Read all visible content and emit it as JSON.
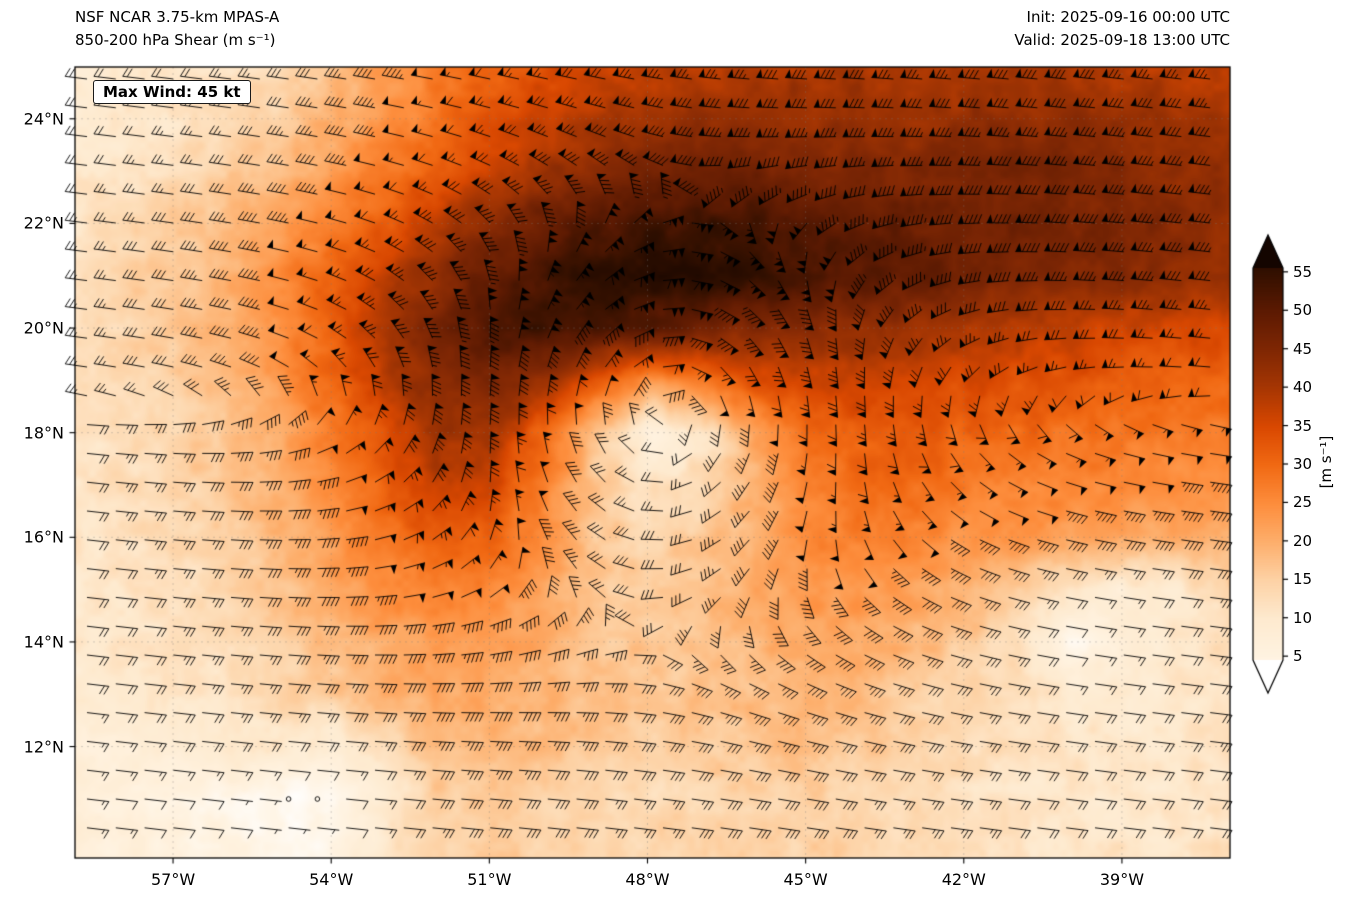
{
  "header": {
    "model_line": "NSF NCAR 3.75-km MPAS-A",
    "field_line": "850-200 hPa Shear (m s⁻¹)",
    "init_line": "Init: 2025-09-16 00:00 UTC",
    "valid_line": "Valid: 2025-09-18 13:00 UTC"
  },
  "annotation": {
    "max_wind_label": "Max Wind: 45 kt"
  },
  "chart_data": {
    "type": "heatmap",
    "title": "850-200 hPa Shear (m s⁻¹)",
    "units": "m s⁻¹",
    "lon_range": [
      -58.86,
      -36.95
    ],
    "lat_range": [
      9.87,
      24.99
    ],
    "x_ticks": [
      {
        "lon": -57,
        "label": "57°W"
      },
      {
        "lon": -54,
        "label": "54°W"
      },
      {
        "lon": -51,
        "label": "51°W"
      },
      {
        "lon": -48,
        "label": "48°W"
      },
      {
        "lon": -45,
        "label": "45°W"
      },
      {
        "lon": -42,
        "label": "42°W"
      },
      {
        "lon": -39,
        "label": "39°W"
      }
    ],
    "y_ticks": [
      {
        "lat": 12,
        "label": "12°N"
      },
      {
        "lat": 14,
        "label": "14°N"
      },
      {
        "lat": 16,
        "label": "16°N"
      },
      {
        "lat": 18,
        "label": "18°N"
      },
      {
        "lat": 20,
        "label": "20°N"
      },
      {
        "lat": 22,
        "label": "22°N"
      },
      {
        "lat": 24,
        "label": "24°N"
      }
    ],
    "colorbar": {
      "label": "[m s⁻¹]",
      "ticks": [
        5,
        10,
        15,
        20,
        25,
        30,
        35,
        40,
        45,
        50,
        55
      ],
      "extend": "both",
      "stops": [
        [
          0,
          "#ffffff"
        ],
        [
          5,
          "#fff3e1"
        ],
        [
          10,
          "#feeacf"
        ],
        [
          15,
          "#fdd2a5"
        ],
        [
          20,
          "#fdae6b"
        ],
        [
          25,
          "#fd8d3c"
        ],
        [
          30,
          "#f16913"
        ],
        [
          35,
          "#d94801"
        ],
        [
          40,
          "#a63603"
        ],
        [
          45,
          "#7f2704"
        ],
        [
          50,
          "#5c1a02"
        ],
        [
          55,
          "#331000"
        ],
        [
          60,
          "#140500"
        ]
      ]
    },
    "grid": {
      "comment": "850-200 hPa shear magnitude (m/s) estimated on a 1-degree grid; lats descending, lons ascending",
      "lats": [
        25,
        24,
        23,
        22,
        21,
        20,
        19,
        18,
        17,
        16,
        15,
        14,
        13,
        12,
        11,
        10
      ],
      "lons": [
        -59,
        -58,
        -57,
        -56,
        -55,
        -54,
        -53,
        -52,
        -51,
        -50,
        -49,
        -48,
        -47,
        -46,
        -45,
        -44,
        -43,
        -42,
        -41,
        -40,
        -39,
        -38,
        -37
      ],
      "values": [
        [
          9,
          9,
          10,
          11,
          13,
          17,
          22,
          27,
          31,
          34,
          36,
          38,
          38,
          39,
          40,
          40,
          39,
          39,
          40,
          40,
          39,
          38,
          37
        ],
        [
          9,
          10,
          11,
          13,
          15,
          19,
          24,
          28,
          33,
          36,
          39,
          41,
          42,
          42,
          42,
          42,
          41,
          42,
          43,
          43,
          42,
          41,
          40
        ],
        [
          10,
          11,
          13,
          15,
          18,
          22,
          27,
          32,
          37,
          41,
          44,
          46,
          47,
          47,
          46,
          45,
          45,
          45,
          46,
          45,
          44,
          43,
          42
        ],
        [
          11,
          13,
          15,
          18,
          22,
          27,
          32,
          38,
          44,
          48,
          51,
          53,
          54,
          53,
          51,
          49,
          48,
          47,
          47,
          46,
          45,
          44,
          43
        ],
        [
          13,
          14,
          16,
          20,
          25,
          31,
          37,
          43,
          49,
          53,
          56,
          57,
          56,
          55,
          53,
          51,
          49,
          47,
          46,
          45,
          44,
          43,
          42
        ],
        [
          12,
          14,
          16,
          19,
          25,
          32,
          40,
          46,
          51,
          54,
          53,
          50,
          47,
          45,
          43,
          42,
          41,
          39,
          38,
          37,
          36,
          35,
          35
        ],
        [
          12,
          13,
          15,
          18,
          23,
          30,
          38,
          44,
          46,
          42,
          32,
          24,
          28,
          34,
          37,
          37,
          36,
          35,
          34,
          33,
          32,
          31,
          31
        ],
        [
          11,
          12,
          14,
          17,
          21,
          27,
          34,
          41,
          40,
          31,
          18,
          7,
          10,
          20,
          29,
          32,
          32,
          31,
          30,
          29,
          28,
          27,
          27
        ],
        [
          11,
          12,
          14,
          16,
          20,
          25,
          31,
          37,
          36,
          27,
          16,
          11,
          13,
          19,
          26,
          30,
          29,
          28,
          27,
          26,
          25,
          24,
          24
        ],
        [
          11,
          12,
          13,
          15,
          18,
          23,
          28,
          33,
          31,
          24,
          17,
          14,
          16,
          20,
          25,
          27,
          26,
          24,
          23,
          22,
          21,
          20,
          20
        ],
        [
          10,
          11,
          12,
          14,
          17,
          21,
          25,
          27,
          26,
          21,
          17,
          15,
          17,
          20,
          23,
          24,
          22,
          20,
          16,
          10,
          8,
          10,
          14
        ],
        [
          10,
          11,
          12,
          13,
          15,
          18,
          21,
          23,
          23,
          20,
          17,
          16,
          17,
          19,
          21,
          21,
          19,
          16,
          12,
          3,
          8,
          10,
          13
        ],
        [
          9,
          10,
          11,
          12,
          14,
          16,
          19,
          21,
          21,
          19,
          17,
          16,
          17,
          18,
          19,
          18,
          16,
          14,
          12,
          10,
          9,
          10,
          12
        ],
        [
          8,
          8,
          9,
          11,
          10,
          8,
          13,
          18,
          19,
          18,
          16,
          15,
          16,
          17,
          17,
          16,
          15,
          13,
          12,
          11,
          10,
          11,
          12
        ],
        [
          7,
          6,
          5,
          4,
          2,
          2,
          9,
          15,
          16,
          15,
          14,
          13,
          14,
          15,
          15,
          14,
          13,
          12,
          11,
          10,
          10,
          10,
          11
        ],
        [
          7,
          7,
          6,
          5,
          3,
          4,
          10,
          14,
          16,
          15,
          14,
          14,
          15,
          15,
          15,
          14,
          13,
          12,
          11,
          11,
          11,
          11,
          12
        ]
      ]
    },
    "wind_barbs": {
      "units": "kt",
      "kt_per_ms": 1.943,
      "spacing_px": 28.8,
      "vortex": {
        "lon": -47.6,
        "lat": 18.3,
        "radius_deg": 5.0
      },
      "flow_transition_lat": 18.5,
      "description": "Shear-vector barbs: cyclonic circulation around tropical cyclone near 47.6W 18.3N with calm/light center; strong westerly shear band north of ~19N (max near 21N), weaker easterly shear to the south; calm circles in low-shear patches near 55W/11N and 40W/14N."
    }
  }
}
